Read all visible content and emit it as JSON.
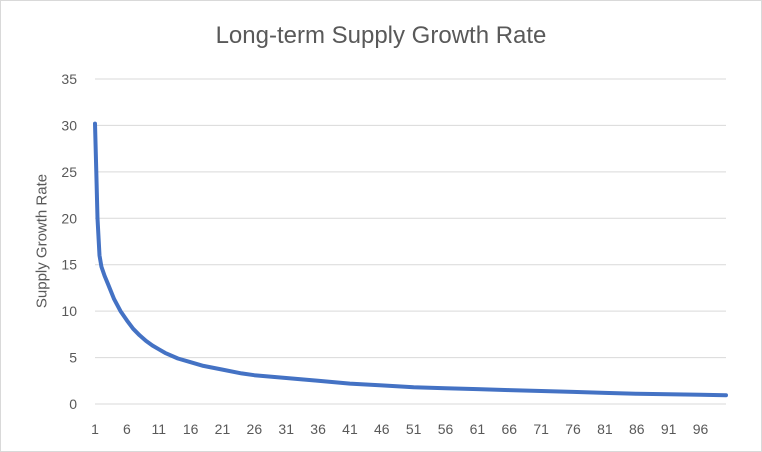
{
  "chart_data": {
    "type": "line",
    "title": "Long-term Supply Growth Rate",
    "xlabel": "",
    "ylabel": "Supply Growth Rate",
    "ylim": [
      0,
      35
    ],
    "yticks": [
      "0",
      "5",
      "10",
      "15",
      "20",
      "25",
      "30",
      "35"
    ],
    "xticks": [
      "1",
      "6",
      "11",
      "16",
      "21",
      "26",
      "31",
      "36",
      "41",
      "46",
      "51",
      "56",
      "61",
      "66",
      "71",
      "76",
      "81",
      "86",
      "91",
      "96"
    ],
    "x": [
      1,
      1.2,
      1.4,
      1.7,
      2,
      2.5,
      3,
      4,
      5,
      6,
      7,
      8,
      9,
      10,
      11,
      12,
      14,
      16,
      18,
      21,
      24,
      26,
      31,
      36,
      41,
      46,
      51,
      56,
      61,
      66,
      71,
      76,
      81,
      86,
      91,
      96,
      100
    ],
    "series": [
      {
        "color": "#4472c4",
        "values": [
          30.2,
          25,
          20,
          16,
          14.8,
          13.8,
          13.0,
          11.3,
          10.0,
          9.0,
          8.1,
          7.4,
          6.8,
          6.3,
          5.9,
          5.5,
          4.9,
          4.5,
          4.1,
          3.7,
          3.3,
          3.1,
          2.8,
          2.5,
          2.2,
          2.0,
          1.8,
          1.7,
          1.6,
          1.5,
          1.4,
          1.3,
          1.2,
          1.1,
          1.05,
          1.0,
          0.95
        ]
      }
    ],
    "grid": "horizontal",
    "legend": "none"
  }
}
